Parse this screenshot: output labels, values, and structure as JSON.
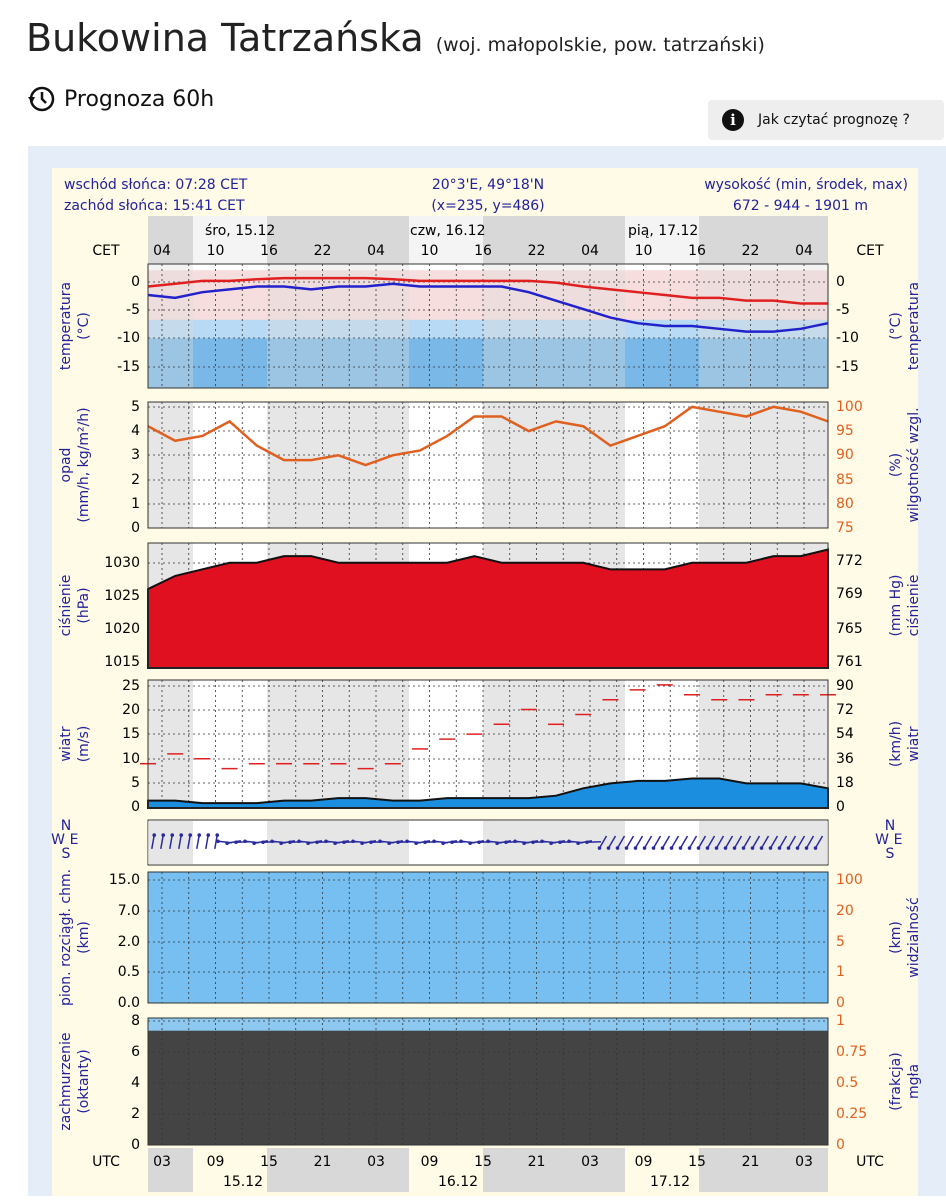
{
  "header": {
    "title": "Bukowina Tatrzańska",
    "subtitle": "(woj. małopolskie, pow. tatrzański)",
    "forecast": "Prognoza 60h",
    "help_button": "Jak czytać prognozę ?"
  },
  "meteogram": {
    "sunrise": "wschód słońca: 07:28 CET",
    "sunset": "zachód słońca: 15:41 CET",
    "coords": "20°3'E, 49°18'N",
    "grid_point": "(x=235, y=486)",
    "altitude_label": "wysokość (min, środek, max)",
    "altitude": "672 - 944 - 1901 m",
    "top_timezone": "CET",
    "bottom_timezone": "UTC",
    "days_top": [
      "śro, 15.12",
      "czw, 16.12",
      "pią, 17.12"
    ],
    "days_bottom": [
      "15.12",
      "16.12",
      "17.12"
    ],
    "hours_top": [
      "04",
      "10",
      "16",
      "22",
      "04",
      "10",
      "16",
      "22",
      "04",
      "10",
      "16",
      "22",
      "04"
    ],
    "hours_bottom": [
      "03",
      "09",
      "15",
      "21",
      "03",
      "09",
      "15",
      "21",
      "03",
      "09",
      "15",
      "21",
      "03"
    ],
    "compass": [
      "N",
      "W",
      "E",
      "S"
    ],
    "panels": [
      {
        "left_title": [
          "temperatura",
          "(°C)"
        ],
        "right_title": [
          "(°C)",
          "temperatura"
        ],
        "left_ticks": [
          "0",
          "-5",
          "-10",
          "-15"
        ],
        "right_ticks": [
          "0",
          "-5",
          "-10",
          "-15"
        ],
        "ylim": [
          -19,
          3
        ],
        "series": [
          {
            "kind": "line",
            "color": "#e02020",
            "values": [
              -1,
              -0.5,
              0,
              0,
              0.3,
              0.5,
              0.5,
              0.5,
              0.5,
              0.3,
              0,
              0,
              0,
              0,
              0,
              -0.3,
              -1,
              -1.5,
              -2,
              -2.5,
              -3,
              -3,
              -3.5,
              -3.5,
              -4,
              -4
            ]
          },
          {
            "kind": "line",
            "color": "#2222cc",
            "values": [
              -2.5,
              -3,
              -2,
              -1.5,
              -1,
              -1,
              -1.5,
              -1,
              -1,
              -0.5,
              -1,
              -1,
              -1,
              -1,
              -2,
              -3.5,
              -5,
              -6.5,
              -7.5,
              -8,
              -8,
              -8.5,
              -9,
              -9,
              -8.5,
              -7.5
            ]
          }
        ]
      },
      {
        "left_title": [
          "opad",
          "(mm/h, kg/m²/h)"
        ],
        "right_title": [
          "(%)",
          "wilgotność wzgl."
        ],
        "left_ticks": [
          "5",
          "4",
          "3",
          "2",
          "1",
          "0"
        ],
        "right_ticks": [
          "100",
          "95",
          "90",
          "85",
          "80",
          "75"
        ],
        "ylim": [
          75,
          101
        ],
        "series": [
          {
            "kind": "line",
            "color": "#e06020",
            "values": [
              96,
              93,
              94,
              97,
              92,
              89,
              89,
              90,
              88,
              90,
              91,
              94,
              98,
              98,
              95,
              97,
              96,
              92,
              94,
              96,
              100,
              99,
              98,
              100,
              99,
              97
            ]
          }
        ]
      },
      {
        "left_title": [
          "ciśnienie",
          "(hPa)"
        ],
        "right_title": [
          "(mm Hg)",
          "ciśnienie"
        ],
        "left_ticks": [
          "1030",
          "1025",
          "1020",
          "1015"
        ],
        "right_ticks": [
          "772",
          "769",
          "765",
          "761"
        ],
        "ylim": [
          1014,
          1033
        ],
        "series": [
          {
            "kind": "area",
            "color": "#e01020",
            "values": [
              1026,
              1028,
              1029,
              1030,
              1030,
              1031,
              1031,
              1030,
              1030,
              1030,
              1030,
              1030,
              1031,
              1030,
              1030,
              1030,
              1030,
              1029,
              1029,
              1029,
              1030,
              1030,
              1030,
              1031,
              1031,
              1032
            ]
          }
        ]
      },
      {
        "left_title": [
          "wiatr",
          "(m/s)"
        ],
        "right_title": [
          "(km/h)",
          "wiatr"
        ],
        "left_ticks": [
          "25",
          "20",
          "15",
          "10",
          "5",
          "0"
        ],
        "right_ticks": [
          "90",
          "72",
          "54",
          "36",
          "18",
          "0"
        ],
        "ylim": [
          0,
          26
        ],
        "series": [
          {
            "kind": "area",
            "color": "#1c8ee0",
            "values": [
              1.5,
              1.5,
              1,
              1,
              1,
              1.5,
              1.5,
              2,
              2,
              1.5,
              1.5,
              2,
              2,
              2,
              2,
              2.5,
              4,
              5,
              5.5,
              5.5,
              6,
              6,
              5,
              5,
              5,
              4
            ]
          },
          {
            "kind": "dash",
            "color": "#e02020",
            "values": [
              9,
              11,
              10,
              8,
              9,
              9,
              9,
              9,
              8,
              9,
              12,
              14,
              15,
              17,
              20,
              17,
              19,
              22,
              24,
              25,
              23,
              22,
              22,
              23,
              23,
              23
            ]
          }
        ]
      },
      {
        "left_title": [
          "pion. rozciągł. chm.",
          "(km)"
        ],
        "right_title": [
          "(km)",
          "widzialność"
        ],
        "left_ticks": [
          "15.0",
          "7.0",
          "2.0",
          "0.5",
          "0.0"
        ],
        "right_ticks": [
          "100",
          "20",
          "5",
          "1",
          "0"
        ]
      },
      {
        "left_title": [
          "zachmurzenie",
          "(oktanty)"
        ],
        "right_title": [
          "(frakcja)",
          "mgła"
        ],
        "left_ticks": [
          "8",
          "6",
          "4",
          "2",
          "0"
        ],
        "right_ticks": [
          "1",
          "0.75",
          "0.5",
          "0.25",
          "0"
        ]
      }
    ]
  }
}
